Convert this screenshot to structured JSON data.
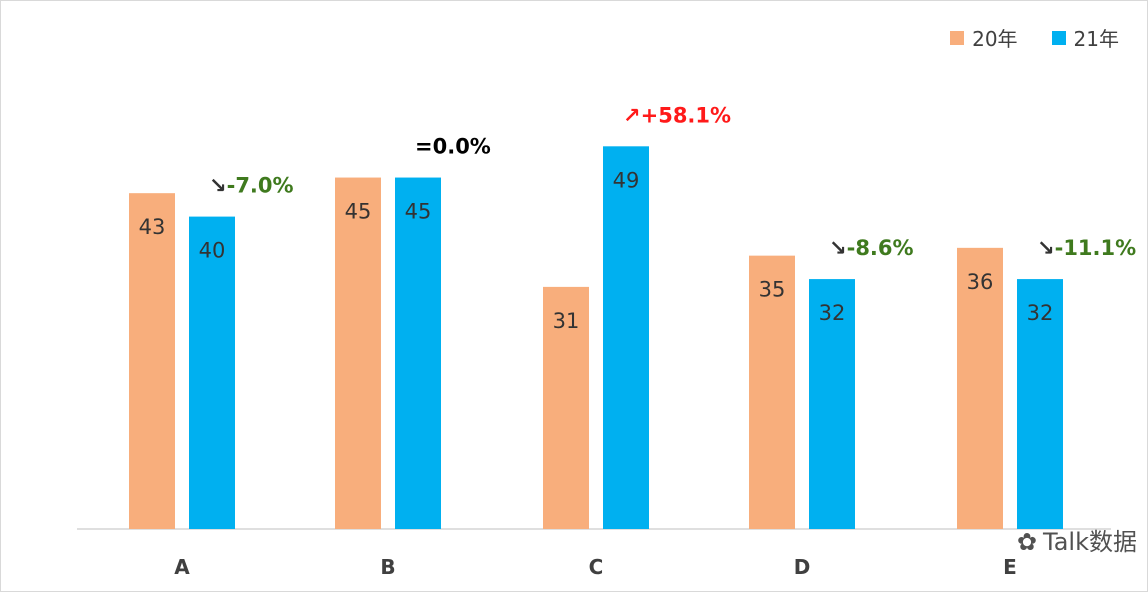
{
  "chart_data": {
    "type": "bar",
    "title": "",
    "xlabel": "",
    "ylabel": "",
    "categories": [
      "A",
      "B",
      "C",
      "D",
      "E"
    ],
    "series": [
      {
        "name": "20年",
        "color": "#F8AE7C",
        "values": [
          43,
          45,
          31,
          35,
          36
        ]
      },
      {
        "name": "21年",
        "color": "#00B0F0",
        "values": [
          40,
          45,
          49,
          32,
          32
        ]
      }
    ],
    "annotations": [
      {
        "category": "A",
        "arrow": "↘",
        "text": "-7.0%",
        "color": "#3F7A1E"
      },
      {
        "category": "B",
        "arrow": "=",
        "text": "0.0%",
        "color": "#000000"
      },
      {
        "category": "C",
        "arrow": "↗",
        "text": "+58.1%",
        "color": "#FF1A1A"
      },
      {
        "category": "D",
        "arrow": "↘",
        "text": "-8.6%",
        "color": "#3F7A1E"
      },
      {
        "category": "E",
        "arrow": "↘",
        "text": "-11.1%",
        "color": "#3F7A1E"
      }
    ],
    "ylim": [
      0,
      50
    ],
    "grid": false,
    "legend_position": "top-right"
  },
  "watermark": "Talk数据"
}
